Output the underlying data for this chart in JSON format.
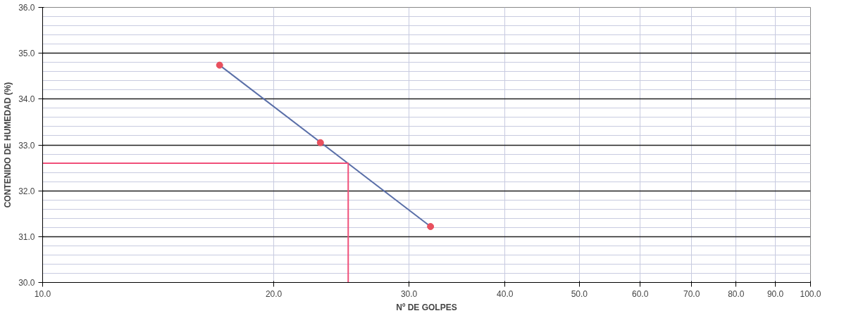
{
  "chart_data": {
    "type": "scatter",
    "xlabel": "Nº DE GOLPES",
    "ylabel": "CONTENIDO DE HUMEDAD (%)",
    "log": "x",
    "xlim": [
      10,
      100
    ],
    "ylim": [
      30,
      36
    ],
    "xticks": [
      {
        "value": 10,
        "label": "10.0"
      },
      {
        "value": 20,
        "label": "20.0"
      },
      {
        "value": 30,
        "label": "30.0"
      },
      {
        "value": 40,
        "label": "40.0"
      },
      {
        "value": 50,
        "label": "50.0"
      },
      {
        "value": 60,
        "label": "60.0"
      },
      {
        "value": 70,
        "label": "70.0"
      },
      {
        "value": 80,
        "label": "80.0"
      },
      {
        "value": 90,
        "label": "90.0"
      },
      {
        "value": 100,
        "label": "100.0"
      }
    ],
    "yticks": [
      {
        "value": 30,
        "label": "30.0"
      },
      {
        "value": 31,
        "label": "31.0"
      },
      {
        "value": 32,
        "label": "32.0"
      },
      {
        "value": 33,
        "label": "33.0"
      },
      {
        "value": 34,
        "label": "34.0"
      },
      {
        "value": 35,
        "label": "35.0"
      },
      {
        "value": 36,
        "label": "36.0"
      }
    ],
    "grid": true,
    "series": [
      {
        "type": "line",
        "color": "#5a6fa8",
        "x": [
          17,
          32
        ],
        "values": [
          34.74,
          31.22
        ],
        "marker": "none"
      },
      {
        "type": "line",
        "color": "#f0507a",
        "x": [
          10,
          25,
          25
        ],
        "values": [
          32.6,
          32.6,
          30
        ],
        "marker": "none"
      },
      {
        "color": "#e8505e",
        "x": [
          17,
          23,
          32
        ],
        "values": [
          34.74,
          33.05,
          31.22
        ],
        "marker": "circle"
      }
    ]
  }
}
